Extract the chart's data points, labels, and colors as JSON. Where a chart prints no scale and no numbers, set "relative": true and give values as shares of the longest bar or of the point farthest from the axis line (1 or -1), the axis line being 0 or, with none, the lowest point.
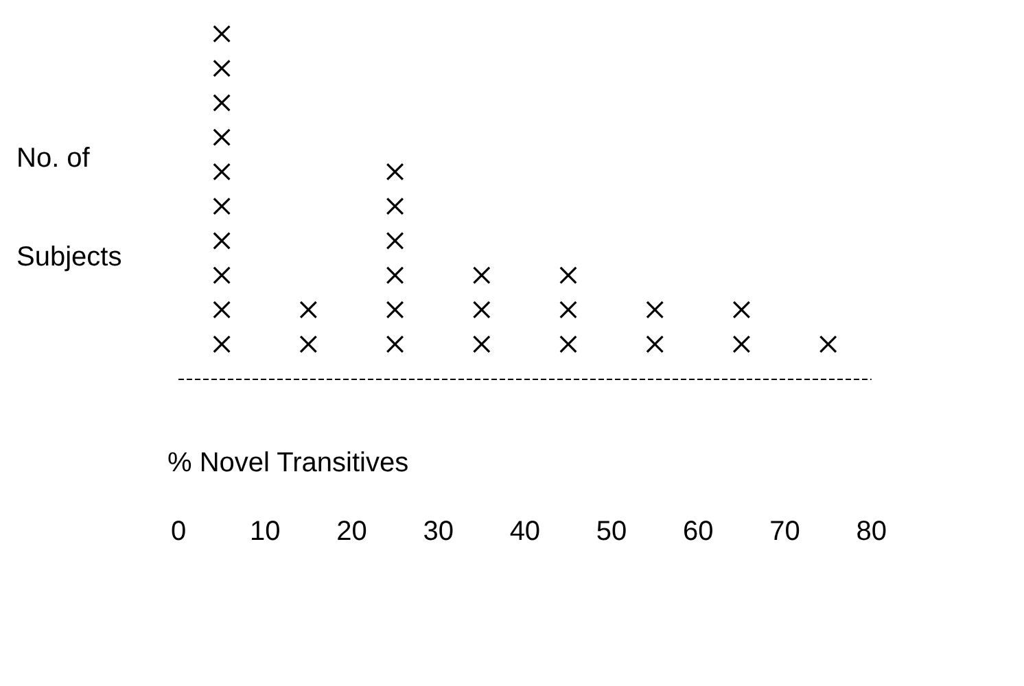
{
  "chart_data": {
    "type": "scatter",
    "xlabel": "% Novel Transitives",
    "ylabel": "No. of Subjects",
    "x": [
      5,
      5,
      5,
      5,
      5,
      5,
      5,
      5,
      5,
      5,
      15,
      15,
      25,
      25,
      25,
      25,
      25,
      25,
      35,
      35,
      35,
      45,
      45,
      45,
      55,
      55,
      65,
      65,
      75
    ],
    "relative": true,
    "values": [
      0.1,
      0.2,
      0.3,
      0.4,
      0.5,
      0.6,
      0.7,
      0.8,
      0.9,
      1,
      0.1,
      0.2,
      0.1,
      0.2,
      0.3,
      0.4,
      0.5,
      0.6,
      0.1,
      0.2,
      0.3,
      0.1,
      0.2,
      0.3,
      0.1,
      0.2,
      0.1,
      0.2,
      0.1
    ],
    "color": "#000000",
    "marker": "cross",
    "line_style": "dashed",
    "xlim": [
      0,
      80
    ],
    "xticks": [
      0,
      10,
      20,
      30,
      40,
      50,
      60,
      70,
      80
    ]
  }
}
